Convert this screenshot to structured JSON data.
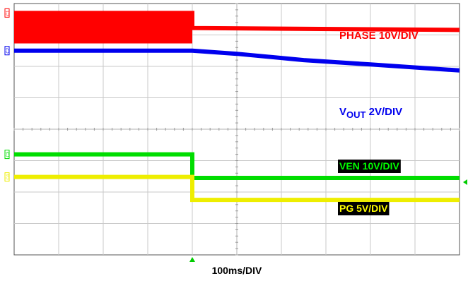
{
  "chart_data": {
    "type": "line",
    "title": "",
    "grid": true,
    "divisions": {
      "horizontal": 10,
      "vertical": 8
    },
    "time_per_div_label": "100ms/DIV",
    "time_per_div_ms": 100,
    "event_time_div": 4.0,
    "series": [
      {
        "name": "PHASE 10V/DIV",
        "name_main": "PHASE 10V/DIV",
        "color": "#ff0000",
        "channel_marker": "C1",
        "switching": {
          "from_div": 0.0,
          "to_div": 4.0,
          "top_div_from_top": 0.3,
          "bottom_div_from_top": 1.27
        },
        "points": [
          [
            0.0,
            0.3
          ],
          [
            4.0,
            0.3
          ],
          [
            4.0,
            0.78
          ],
          [
            10.0,
            0.84
          ]
        ]
      },
      {
        "name": "VOUT 2V/DIV",
        "name_main": "V",
        "name_sub": "OUT",
        "name_tail": " 2V/DIV",
        "color": "#0000ee",
        "channel_marker": "C2",
        "points": [
          [
            0.0,
            1.5
          ],
          [
            4.0,
            1.5
          ],
          [
            5.0,
            1.6
          ],
          [
            6.5,
            1.8
          ],
          [
            8.0,
            1.94
          ],
          [
            10.0,
            2.13
          ]
        ]
      },
      {
        "name": "VEN 10V/DIV",
        "name_main": "VEN 10V/DIV",
        "color": "#00dd00",
        "label_bg": "#000000",
        "label_fg": "#00ff00",
        "channel_marker": "C3",
        "points": [
          [
            0.0,
            4.8
          ],
          [
            4.0,
            4.8
          ],
          [
            4.0,
            5.55
          ],
          [
            10.0,
            5.55
          ]
        ]
      },
      {
        "name": "PG 5V/DIV",
        "name_main": "PG 5V/DIV",
        "color": "#eeee00",
        "label_bg": "#000000",
        "label_fg": "#ffff00",
        "channel_marker": "C4",
        "points": [
          [
            0.0,
            5.52
          ],
          [
            4.0,
            5.52
          ],
          [
            4.0,
            6.25
          ],
          [
            10.0,
            6.25
          ]
        ]
      }
    ]
  }
}
